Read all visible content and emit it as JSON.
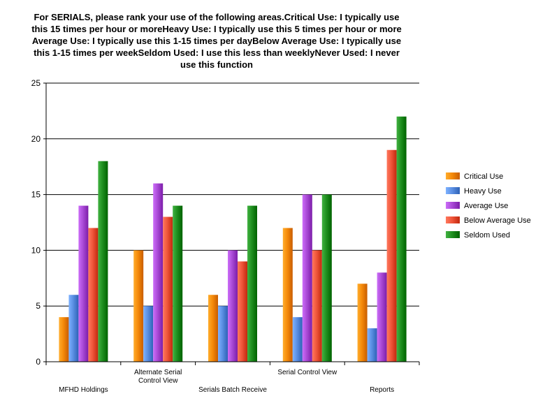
{
  "chart_data": {
    "type": "bar",
    "title": "For SERIALS, please rank your use of the following areas.Critical Use: I typically use this 15 times per hour or moreHeavy Use: I typically use this 5 times per hour or more Average Use: I typically use this 1-15 times per dayBelow Average Use: I typically use this 1-15 times per weekSeldom Used: I use this less than weeklyNever Used: I never use this function",
    "categories": [
      [
        "MFHD Holdings"
      ],
      [
        "Alternate Serial",
        "Control View"
      ],
      [
        "Serials Batch Receive"
      ],
      [
        "Serial Control View"
      ],
      [
        "Reports"
      ]
    ],
    "category_label_rows": [
      "low",
      "high",
      "low",
      "high",
      "low"
    ],
    "series": [
      {
        "name": "Critical Use",
        "color": "#f58a0a",
        "values": [
          4,
          10,
          6,
          12,
          7
        ]
      },
      {
        "name": "Heavy Use",
        "color": "#5b8fe3",
        "values": [
          6,
          5,
          5,
          4,
          3
        ]
      },
      {
        "name": "Average Use",
        "color": "#a94ad6",
        "values": [
          14,
          16,
          10,
          15,
          8
        ]
      },
      {
        "name": "Below Average Use",
        "color": "#ef553a",
        "values": [
          12,
          13,
          9,
          10,
          19
        ]
      },
      {
        "name": "Seldom Used",
        "color": "#1f8f1f",
        "values": [
          18,
          14,
          14,
          15,
          22
        ]
      }
    ],
    "ylim": [
      0,
      25
    ],
    "yticks": [
      "0",
      "5",
      "10",
      "15",
      "20",
      "25"
    ],
    "grid": true,
    "legend_position": "right"
  }
}
